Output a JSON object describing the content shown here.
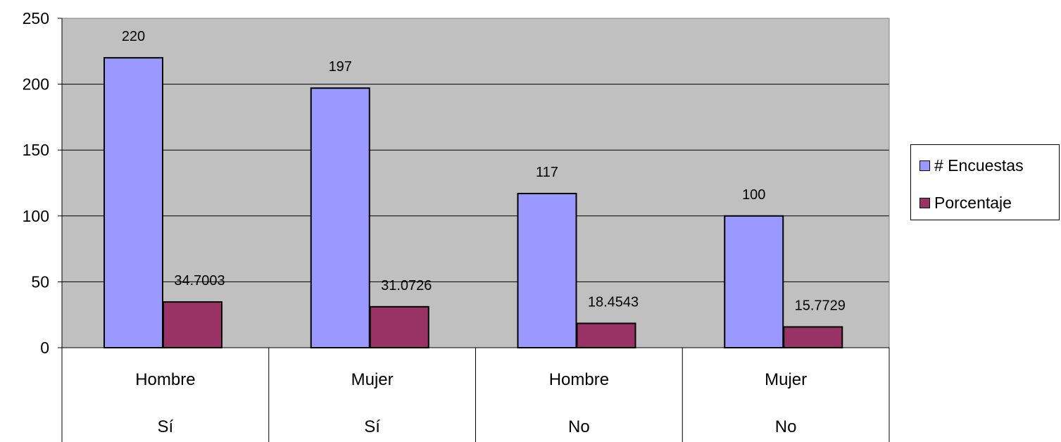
{
  "chart_data": {
    "type": "bar",
    "title": "",
    "xlabel": "",
    "ylabel": "",
    "ylim": [
      0,
      250
    ],
    "yticks": [
      0,
      50,
      100,
      150,
      200,
      250
    ],
    "categories": [
      {
        "sub": "Hombre",
        "group": "Sí"
      },
      {
        "sub": "Mujer",
        "group": "Sí"
      },
      {
        "sub": "Hombre",
        "group": "No"
      },
      {
        "sub": "Mujer",
        "group": "No"
      }
    ],
    "series": [
      {
        "name": "# Encuestas",
        "color": "#9999ff",
        "values": [
          220,
          197,
          117,
          100
        ],
        "labels": [
          "220",
          "197",
          "117",
          "100"
        ]
      },
      {
        "name": "Porcentaje",
        "color": "#993366",
        "values": [
          34.7003,
          31.0726,
          18.4543,
          15.7729
        ],
        "labels": [
          "34.7003",
          "31.0726",
          "18.4543",
          "15.7729"
        ]
      }
    ],
    "plot_background": "#c0c0c0",
    "grid": true,
    "legend_position": "right"
  }
}
